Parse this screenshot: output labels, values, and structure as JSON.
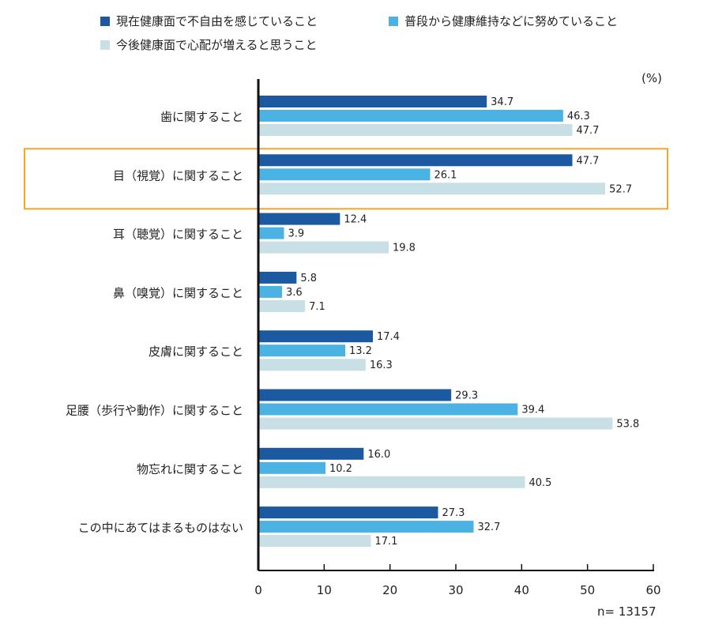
{
  "unit_label": "(%)",
  "n_label": "n= 13157",
  "colors": {
    "highlight_border": "#f5a623",
    "axis": "#111111"
  },
  "chart_data": {
    "type": "bar",
    "orientation": "horizontal",
    "title": "",
    "xlabel": "",
    "ylabel": "",
    "xlim": [
      0,
      60
    ],
    "xticks": [
      0,
      10,
      20,
      30,
      40,
      50,
      60
    ],
    "grid": false,
    "legend_position": "top",
    "categories": [
      "歯に関すること",
      "目（視覚）に関すること",
      "耳（聴覚）に関すること",
      "鼻（嗅覚）に関すること",
      "皮膚に関すること",
      "足腰（歩行や動作）に関すること",
      "物忘れに関すること",
      "この中にあてはまるものはない"
    ],
    "highlighted_category": "目（視覚）に関すること",
    "series": [
      {
        "name": "現在健康面で不自由を感じていること",
        "color": "#1b5aa0",
        "values": [
          34.7,
          47.7,
          12.4,
          5.8,
          17.4,
          29.3,
          16.0,
          27.3
        ],
        "labels": [
          "34.7",
          "47.7",
          "12.4",
          "5.8",
          "17.4",
          "29.3",
          "16.0",
          "27.3"
        ]
      },
      {
        "name": "普段から健康維持などに努めていること",
        "color": "#4bb3e4",
        "values": [
          46.3,
          26.1,
          3.9,
          3.6,
          13.2,
          39.4,
          10.2,
          32.7
        ],
        "labels": [
          "46.3",
          "26.1",
          "3.9",
          "3.6",
          "13.2",
          "39.4",
          "10.2",
          "32.7"
        ]
      },
      {
        "name": "今後健康面で心配が増えると思うこと",
        "color": "#c8dfe6",
        "values": [
          47.7,
          52.7,
          19.8,
          7.1,
          16.3,
          53.8,
          40.5,
          17.1
        ],
        "labels": [
          "47.7",
          "52.7",
          "19.8",
          "7.1",
          "16.3",
          "53.8",
          "40.5",
          "17.1"
        ]
      }
    ]
  }
}
